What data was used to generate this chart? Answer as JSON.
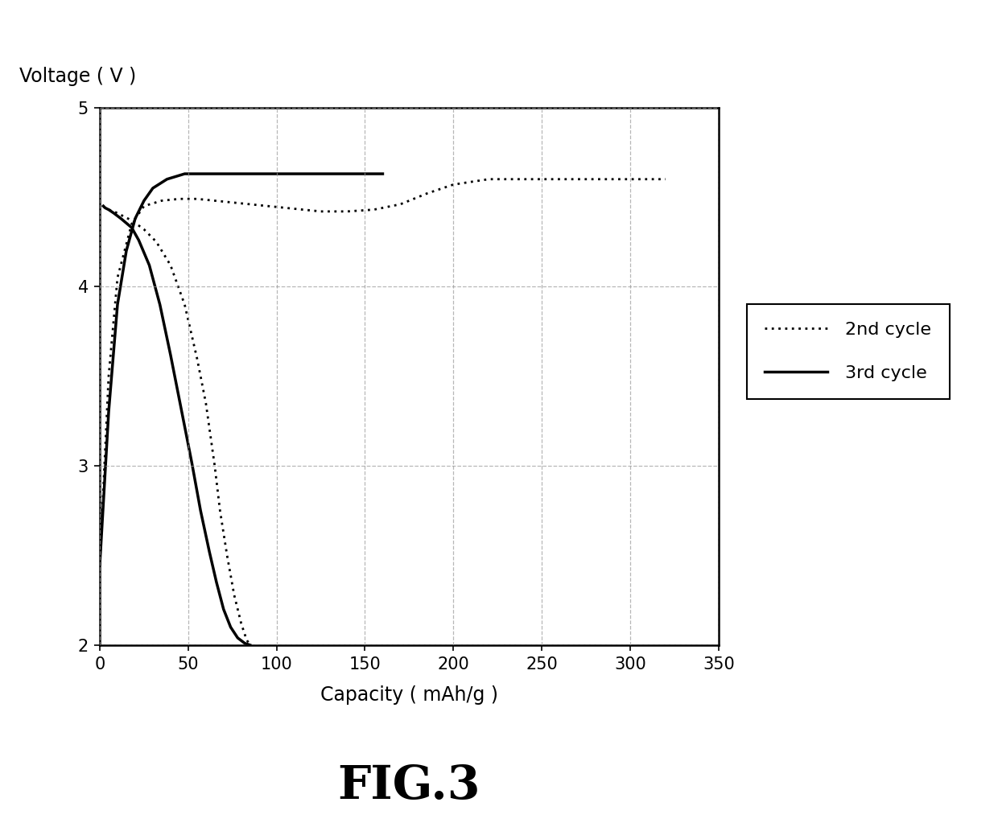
{
  "title": "FIG.3",
  "xlabel": "Capacity ( mAh/g )",
  "ylabel": "Voltage ( V )",
  "xlim": [
    0,
    325
  ],
  "ylim": [
    2,
    5
  ],
  "xticks": [
    0,
    50,
    100,
    150,
    200,
    250,
    300,
    350
  ],
  "yticks": [
    2,
    3,
    4,
    5
  ],
  "background_color": "#ffffff",
  "grid_color": "#999999",
  "cycle2_discharge_x": [
    2,
    3,
    5,
    8,
    12,
    18,
    25,
    32,
    40,
    48,
    55,
    60,
    65,
    68,
    72,
    76,
    80,
    83,
    85
  ],
  "cycle2_discharge_y": [
    4.45,
    4.44,
    4.43,
    4.42,
    4.4,
    4.37,
    4.32,
    4.25,
    4.12,
    3.9,
    3.6,
    3.35,
    3.0,
    2.75,
    2.5,
    2.28,
    2.12,
    2.03,
    2.0
  ],
  "cycle2_charge_x": [
    0,
    5,
    10,
    18,
    25,
    35,
    45,
    55,
    65,
    75,
    85,
    95,
    105,
    115,
    125,
    140,
    155,
    170,
    185,
    200,
    220,
    240,
    260,
    280,
    300,
    315,
    320
  ],
  "cycle2_charge_y": [
    2.45,
    3.5,
    4.05,
    4.35,
    4.45,
    4.48,
    4.49,
    4.49,
    4.48,
    4.47,
    4.46,
    4.45,
    4.44,
    4.43,
    4.42,
    4.42,
    4.43,
    4.46,
    4.52,
    4.57,
    4.6,
    4.6,
    4.6,
    4.6,
    4.6,
    4.6,
    4.6
  ],
  "cycle3_discharge_x": [
    2,
    3,
    5,
    8,
    12,
    18,
    22,
    28,
    34,
    40,
    46,
    52,
    57,
    62,
    66,
    70,
    74,
    78,
    82,
    85
  ],
  "cycle3_discharge_y": [
    4.45,
    4.44,
    4.43,
    4.41,
    4.38,
    4.33,
    4.26,
    4.12,
    3.9,
    3.62,
    3.32,
    3.02,
    2.75,
    2.52,
    2.35,
    2.2,
    2.1,
    2.04,
    2.01,
    2.0
  ],
  "cycle3_charge_x": [
    0,
    5,
    10,
    15,
    20,
    25,
    30,
    38,
    48,
    58,
    68,
    78,
    88,
    100,
    120,
    140,
    160
  ],
  "cycle3_charge_y": [
    2.45,
    3.3,
    3.9,
    4.2,
    4.38,
    4.48,
    4.55,
    4.6,
    4.63,
    4.63,
    4.63,
    4.63,
    4.63,
    4.63,
    4.63,
    4.63,
    4.63
  ]
}
